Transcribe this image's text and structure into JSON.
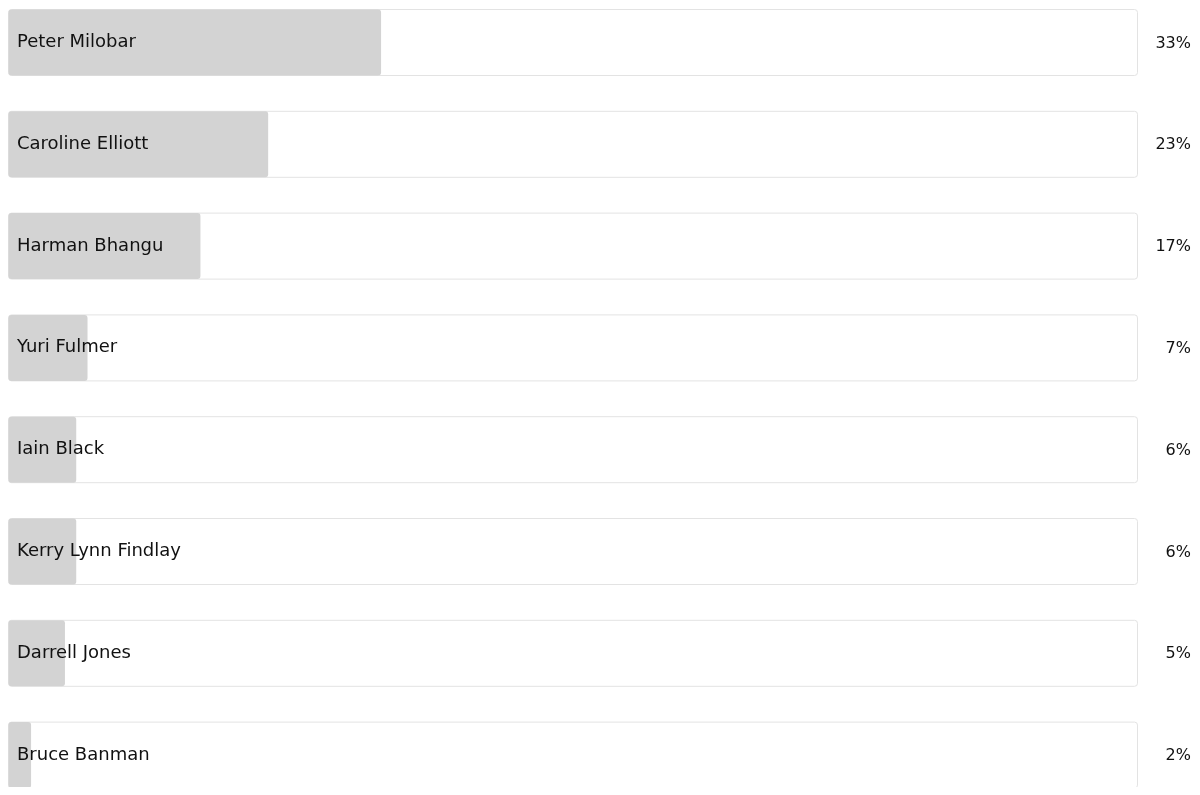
{
  "chart_data": {
    "type": "bar",
    "orientation": "horizontal",
    "categories": [
      "Peter Milobar",
      "Caroline Elliott",
      "Harman Bhangu",
      "Yuri Fulmer",
      "Iain Black",
      "Kerry Lynn Findlay",
      "Darrell Jones",
      "Bruce Banman"
    ],
    "values": [
      33,
      23,
      17,
      7,
      6,
      6,
      5,
      2
    ],
    "value_labels": [
      "33%",
      "23%",
      "17%",
      "7%",
      "6%",
      "6%",
      "5%",
      "2%"
    ],
    "color": "#d3d3d3",
    "xlim": [
      0,
      100
    ]
  }
}
